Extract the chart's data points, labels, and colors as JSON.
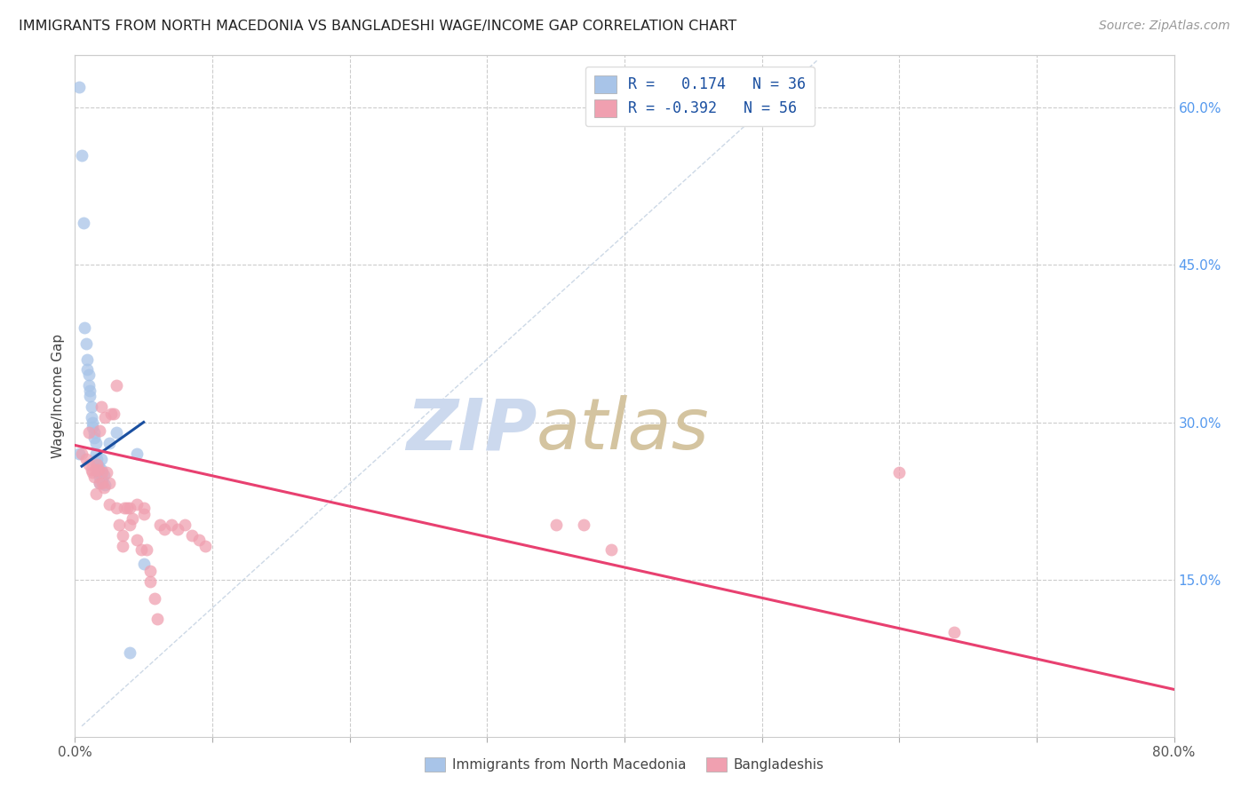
{
  "title": "IMMIGRANTS FROM NORTH MACEDONIA VS BANGLADESHI WAGE/INCOME GAP CORRELATION CHART",
  "source": "Source: ZipAtlas.com",
  "ylabel": "Wage/Income Gap",
  "right_yticks": [
    "60.0%",
    "45.0%",
    "30.0%",
    "15.0%"
  ],
  "right_ytick_vals": [
    0.6,
    0.45,
    0.3,
    0.15
  ],
  "legend_blue_label": "Immigrants from North Macedonia",
  "legend_pink_label": "Bangladeshis",
  "blue_dot_color": "#a8c4e8",
  "blue_line_color": "#1a4fa0",
  "pink_dot_color": "#f0a0b0",
  "pink_line_color": "#e84070",
  "watermark_zip_color": "#ccd9ee",
  "watermark_atlas_color": "#d8c8a8",
  "x_min": 0.0,
  "x_max": 0.8,
  "y_min": 0.0,
  "y_max": 0.65,
  "blue_scatter_x": [
    0.003,
    0.005,
    0.006,
    0.007,
    0.008,
    0.009,
    0.009,
    0.01,
    0.01,
    0.011,
    0.011,
    0.012,
    0.012,
    0.013,
    0.013,
    0.014,
    0.014,
    0.015,
    0.015,
    0.016,
    0.016,
    0.017,
    0.017,
    0.018,
    0.018,
    0.019,
    0.019,
    0.02,
    0.021,
    0.022,
    0.025,
    0.03,
    0.04,
    0.045,
    0.05,
    0.003
  ],
  "blue_scatter_y": [
    0.62,
    0.555,
    0.49,
    0.39,
    0.375,
    0.36,
    0.35,
    0.345,
    0.335,
    0.33,
    0.325,
    0.315,
    0.305,
    0.3,
    0.295,
    0.29,
    0.285,
    0.28,
    0.27,
    0.265,
    0.26,
    0.258,
    0.252,
    0.248,
    0.242,
    0.265,
    0.255,
    0.245,
    0.25,
    0.24,
    0.28,
    0.29,
    0.08,
    0.27,
    0.165,
    0.27
  ],
  "pink_scatter_x": [
    0.005,
    0.008,
    0.01,
    0.01,
    0.012,
    0.013,
    0.014,
    0.015,
    0.015,
    0.016,
    0.017,
    0.018,
    0.018,
    0.019,
    0.02,
    0.02,
    0.021,
    0.022,
    0.023,
    0.025,
    0.025,
    0.026,
    0.028,
    0.03,
    0.03,
    0.032,
    0.035,
    0.035,
    0.036,
    0.038,
    0.04,
    0.04,
    0.042,
    0.045,
    0.045,
    0.048,
    0.05,
    0.05,
    0.052,
    0.055,
    0.055,
    0.058,
    0.06,
    0.062,
    0.065,
    0.07,
    0.075,
    0.08,
    0.085,
    0.09,
    0.095,
    0.35,
    0.37,
    0.39,
    0.6,
    0.64
  ],
  "pink_scatter_y": [
    0.27,
    0.265,
    0.29,
    0.26,
    0.255,
    0.252,
    0.248,
    0.255,
    0.232,
    0.26,
    0.255,
    0.242,
    0.292,
    0.315,
    0.252,
    0.242,
    0.238,
    0.305,
    0.252,
    0.242,
    0.222,
    0.308,
    0.308,
    0.335,
    0.218,
    0.202,
    0.192,
    0.182,
    0.218,
    0.218,
    0.218,
    0.202,
    0.208,
    0.222,
    0.188,
    0.178,
    0.218,
    0.212,
    0.178,
    0.158,
    0.148,
    0.132,
    0.112,
    0.202,
    0.198,
    0.202,
    0.198,
    0.202,
    0.192,
    0.188,
    0.182,
    0.202,
    0.202,
    0.178,
    0.252,
    0.1
  ],
  "blue_line_x": [
    0.005,
    0.05
  ],
  "blue_line_y": [
    0.258,
    0.3
  ],
  "pink_line_x": [
    0.0,
    0.8
  ],
  "pink_line_y": [
    0.278,
    0.045
  ],
  "dashed_line_x": [
    0.005,
    0.54
  ],
  "dashed_line_y": [
    0.01,
    0.645
  ]
}
